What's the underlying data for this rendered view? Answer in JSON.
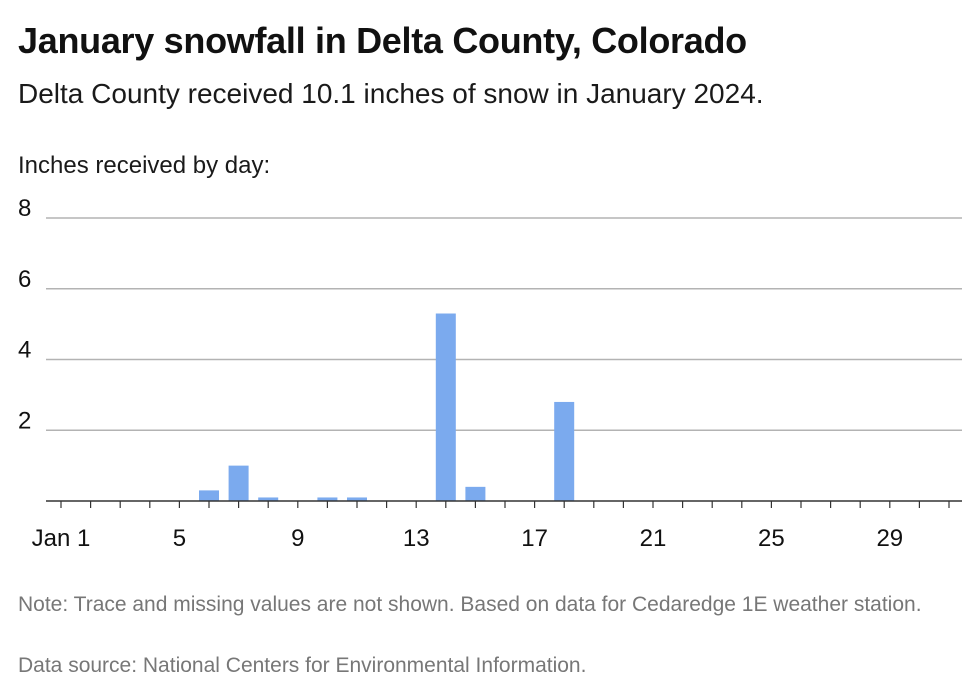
{
  "header": {
    "title": "January snowfall in Delta County, Colorado",
    "subtitle": "Delta County received 10.1 inches of snow in January 2024."
  },
  "footer": {
    "note": "Note: Trace and missing values are not shown. Based on data for Cedaredge 1E weather station.",
    "source": "Data source: National Centers for Environmental Information."
  },
  "colors": {
    "bar": "#7baaee",
    "grid": "#b3b3b3",
    "axis": "#333333"
  },
  "chart_data": {
    "type": "bar",
    "title": "January snowfall in Delta County, Colorado",
    "subtitle": "Delta County received 10.1 inches of snow in January 2024.",
    "ylabel": "Inches received by day:",
    "xlabel": "",
    "ylim": [
      0,
      8
    ],
    "yticks": [
      2,
      4,
      6,
      8
    ],
    "xlim": [
      1,
      31
    ],
    "xtick_labels": [
      {
        "day": 1,
        "label": "Jan 1"
      },
      {
        "day": 5,
        "label": "5"
      },
      {
        "day": 9,
        "label": "9"
      },
      {
        "day": 13,
        "label": "13"
      },
      {
        "day": 17,
        "label": "17"
      },
      {
        "day": 21,
        "label": "21"
      },
      {
        "day": 25,
        "label": "25"
      },
      {
        "day": 29,
        "label": "29"
      }
    ],
    "categories": [
      1,
      2,
      3,
      4,
      5,
      6,
      7,
      8,
      9,
      10,
      11,
      12,
      13,
      14,
      15,
      16,
      17,
      18,
      19,
      20,
      21,
      22,
      23,
      24,
      25,
      26,
      27,
      28,
      29,
      30,
      31
    ],
    "values": [
      0,
      0,
      0,
      0,
      0,
      0.3,
      1.0,
      0.1,
      0,
      0.1,
      0.1,
      0,
      0,
      5.3,
      0.4,
      0,
      0,
      2.8,
      0,
      0,
      0,
      0,
      0,
      0,
      0,
      0,
      0,
      0,
      0,
      0,
      0
    ],
    "grid": true,
    "legend": "none"
  }
}
